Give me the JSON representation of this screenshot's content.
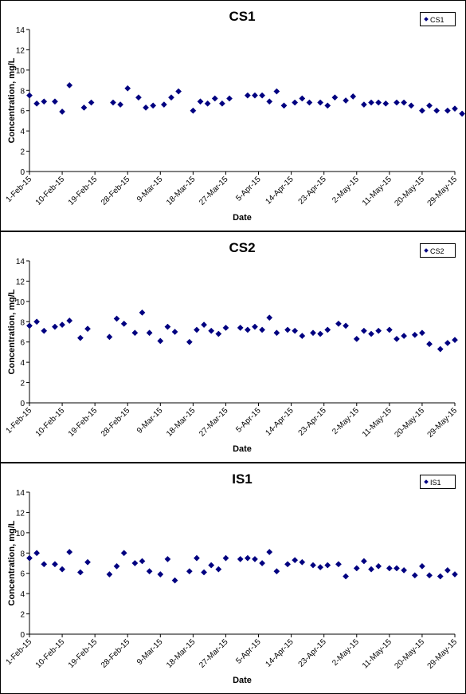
{
  "chart_data": [
    {
      "type": "scatter",
      "title": "CS1",
      "xlabel": "Date",
      "ylabel": "Concentration, mg/L",
      "ylim": [
        0,
        14
      ],
      "yticks": [
        0,
        2,
        4,
        6,
        8,
        10,
        12,
        14
      ],
      "xlim": [
        "2015-02-01",
        "2015-05-29"
      ],
      "xtick_labels": [
        "1-Feb-15",
        "10-Feb-15",
        "19-Feb-15",
        "28-Feb-15",
        "9-Mar-15",
        "18-Mar-15",
        "27-Mar-15",
        "5-Apr-15",
        "14-Apr-15",
        "23-Apr-15",
        "2-May-15",
        "11-May-15",
        "20-May-15",
        "29-May-15"
      ],
      "xtick_dates": [
        "2015-02-01",
        "2015-02-10",
        "2015-02-19",
        "2015-02-28",
        "2015-03-09",
        "2015-03-18",
        "2015-03-27",
        "2015-04-05",
        "2015-04-14",
        "2015-04-23",
        "2015-05-02",
        "2015-05-11",
        "2015-05-20",
        "2015-05-29"
      ],
      "grid": false,
      "legend": "top-right",
      "color": "#000080",
      "series": [
        {
          "name": "CS1",
          "points": [
            [
              "2015-02-01",
              7.5
            ],
            [
              "2015-02-03",
              6.7
            ],
            [
              "2015-02-05",
              6.9
            ],
            [
              "2015-02-08",
              6.9
            ],
            [
              "2015-02-10",
              5.9
            ],
            [
              "2015-02-12",
              8.5
            ],
            [
              "2015-02-16",
              6.3
            ],
            [
              "2015-02-18",
              6.8
            ],
            [
              "2015-02-24",
              6.8
            ],
            [
              "2015-02-26",
              6.6
            ],
            [
              "2015-02-28",
              8.2
            ],
            [
              "2015-03-03",
              7.3
            ],
            [
              "2015-03-05",
              6.3
            ],
            [
              "2015-03-07",
              6.5
            ],
            [
              "2015-03-10",
              6.6
            ],
            [
              "2015-03-12",
              7.3
            ],
            [
              "2015-03-14",
              7.9
            ],
            [
              "2015-03-18",
              6.0
            ],
            [
              "2015-03-20",
              6.9
            ],
            [
              "2015-03-22",
              6.7
            ],
            [
              "2015-03-24",
              7.2
            ],
            [
              "2015-03-26",
              6.7
            ],
            [
              "2015-03-28",
              7.2
            ],
            [
              "2015-04-02",
              7.5
            ],
            [
              "2015-04-04",
              7.5
            ],
            [
              "2015-04-06",
              7.5
            ],
            [
              "2015-04-08",
              6.9
            ],
            [
              "2015-04-10",
              7.9
            ],
            [
              "2015-04-12",
              6.5
            ],
            [
              "2015-04-15",
              6.8
            ],
            [
              "2015-04-17",
              7.2
            ],
            [
              "2015-04-19",
              6.8
            ],
            [
              "2015-04-22",
              6.8
            ],
            [
              "2015-04-24",
              6.5
            ],
            [
              "2015-04-26",
              7.3
            ],
            [
              "2015-04-29",
              7.0
            ],
            [
              "2015-05-01",
              7.4
            ],
            [
              "2015-05-04",
              6.6
            ],
            [
              "2015-05-06",
              6.8
            ],
            [
              "2015-05-08",
              6.8
            ],
            [
              "2015-05-10",
              6.7
            ],
            [
              "2015-05-13",
              6.8
            ],
            [
              "2015-05-15",
              6.8
            ],
            [
              "2015-05-17",
              6.5
            ],
            [
              "2015-05-20",
              6.0
            ],
            [
              "2015-05-22",
              6.5
            ],
            [
              "2015-05-24",
              6.0
            ],
            [
              "2015-05-27",
              6.0
            ],
            [
              "2015-05-29",
              6.2
            ],
            [
              "2015-05-31",
              5.7
            ]
          ]
        }
      ]
    },
    {
      "type": "scatter",
      "title": "CS2",
      "xlabel": "Date",
      "ylabel": "Concentration, mg/L",
      "ylim": [
        0,
        14
      ],
      "yticks": [
        0,
        2,
        4,
        6,
        8,
        10,
        12,
        14
      ],
      "xlim": [
        "2015-02-01",
        "2015-05-29"
      ],
      "xtick_labels": [
        "1-Feb-15",
        "10-Feb-15",
        "19-Feb-15",
        "28-Feb-15",
        "9-Mar-15",
        "18-Mar-15",
        "27-Mar-15",
        "5-Apr-15",
        "14-Apr-15",
        "23-Apr-15",
        "2-May-15",
        "11-May-15",
        "20-May-15",
        "29-May-15"
      ],
      "xtick_dates": [
        "2015-02-01",
        "2015-02-10",
        "2015-02-19",
        "2015-02-28",
        "2015-03-09",
        "2015-03-18",
        "2015-03-27",
        "2015-04-05",
        "2015-04-14",
        "2015-04-23",
        "2015-05-02",
        "2015-05-11",
        "2015-05-20",
        "2015-05-29"
      ],
      "grid": false,
      "legend": "top-right",
      "color": "#000080",
      "series": [
        {
          "name": "CS2",
          "points": [
            [
              "2015-02-01",
              7.6
            ],
            [
              "2015-02-03",
              8.0
            ],
            [
              "2015-02-05",
              7.1
            ],
            [
              "2015-02-08",
              7.5
            ],
            [
              "2015-02-10",
              7.7
            ],
            [
              "2015-02-12",
              8.1
            ],
            [
              "2015-02-15",
              6.4
            ],
            [
              "2015-02-17",
              7.3
            ],
            [
              "2015-02-23",
              6.5
            ],
            [
              "2015-02-25",
              8.3
            ],
            [
              "2015-02-27",
              7.8
            ],
            [
              "2015-03-02",
              6.9
            ],
            [
              "2015-03-04",
              8.9
            ],
            [
              "2015-03-06",
              6.9
            ],
            [
              "2015-03-09",
              6.1
            ],
            [
              "2015-03-11",
              7.5
            ],
            [
              "2015-03-13",
              7.0
            ],
            [
              "2015-03-17",
              6.0
            ],
            [
              "2015-03-19",
              7.2
            ],
            [
              "2015-03-21",
              7.7
            ],
            [
              "2015-03-23",
              7.1
            ],
            [
              "2015-03-25",
              6.8
            ],
            [
              "2015-03-27",
              7.4
            ],
            [
              "2015-03-31",
              7.4
            ],
            [
              "2015-04-02",
              7.2
            ],
            [
              "2015-04-04",
              7.5
            ],
            [
              "2015-04-06",
              7.2
            ],
            [
              "2015-04-08",
              8.4
            ],
            [
              "2015-04-10",
              6.9
            ],
            [
              "2015-04-13",
              7.2
            ],
            [
              "2015-04-15",
              7.1
            ],
            [
              "2015-04-17",
              6.6
            ],
            [
              "2015-04-20",
              6.9
            ],
            [
              "2015-04-22",
              6.8
            ],
            [
              "2015-04-24",
              7.2
            ],
            [
              "2015-04-27",
              7.8
            ],
            [
              "2015-04-29",
              7.6
            ],
            [
              "2015-05-02",
              6.3
            ],
            [
              "2015-05-04",
              7.1
            ],
            [
              "2015-05-06",
              6.8
            ],
            [
              "2015-05-08",
              7.1
            ],
            [
              "2015-05-11",
              7.2
            ],
            [
              "2015-05-13",
              6.3
            ],
            [
              "2015-05-15",
              6.6
            ],
            [
              "2015-05-18",
              6.7
            ],
            [
              "2015-05-20",
              6.9
            ],
            [
              "2015-05-22",
              5.8
            ],
            [
              "2015-05-25",
              5.3
            ],
            [
              "2015-05-27",
              5.9
            ],
            [
              "2015-05-29",
              6.2
            ]
          ]
        }
      ]
    },
    {
      "type": "scatter",
      "title": "IS1",
      "xlabel": "Date",
      "ylabel": "Concentration, mg/L",
      "ylim": [
        0,
        14
      ],
      "yticks": [
        0,
        2,
        4,
        6,
        8,
        10,
        12,
        14
      ],
      "xlim": [
        "2015-02-01",
        "2015-05-29"
      ],
      "xtick_labels": [
        "1-Feb-15",
        "10-Feb-15",
        "19-Feb-15",
        "28-Feb-15",
        "9-Mar-15",
        "18-Mar-15",
        "27-Mar-15",
        "5-Apr-15",
        "14-Apr-15",
        "23-Apr-15",
        "2-May-15",
        "11-May-15",
        "20-May-15",
        "29-May-15"
      ],
      "xtick_dates": [
        "2015-02-01",
        "2015-02-10",
        "2015-02-19",
        "2015-02-28",
        "2015-03-09",
        "2015-03-18",
        "2015-03-27",
        "2015-04-05",
        "2015-04-14",
        "2015-04-23",
        "2015-05-02",
        "2015-05-11",
        "2015-05-20",
        "2015-05-29"
      ],
      "grid": false,
      "legend": "top-right",
      "color": "#000080",
      "series": [
        {
          "name": "IS1",
          "points": [
            [
              "2015-02-01",
              7.5
            ],
            [
              "2015-02-03",
              8.0
            ],
            [
              "2015-02-05",
              6.9
            ],
            [
              "2015-02-08",
              6.9
            ],
            [
              "2015-02-10",
              6.4
            ],
            [
              "2015-02-12",
              8.1
            ],
            [
              "2015-02-15",
              6.1
            ],
            [
              "2015-02-17",
              7.1
            ],
            [
              "2015-02-23",
              5.9
            ],
            [
              "2015-02-25",
              6.7
            ],
            [
              "2015-02-27",
              8.0
            ],
            [
              "2015-03-02",
              7.0
            ],
            [
              "2015-03-04",
              7.2
            ],
            [
              "2015-03-06",
              6.2
            ],
            [
              "2015-03-09",
              5.9
            ],
            [
              "2015-03-11",
              7.4
            ],
            [
              "2015-03-13",
              5.3
            ],
            [
              "2015-03-17",
              6.2
            ],
            [
              "2015-03-19",
              7.5
            ],
            [
              "2015-03-21",
              6.1
            ],
            [
              "2015-03-23",
              6.8
            ],
            [
              "2015-03-25",
              6.4
            ],
            [
              "2015-03-27",
              7.5
            ],
            [
              "2015-03-31",
              7.4
            ],
            [
              "2015-04-02",
              7.5
            ],
            [
              "2015-04-04",
              7.4
            ],
            [
              "2015-04-06",
              7.0
            ],
            [
              "2015-04-08",
              8.1
            ],
            [
              "2015-04-10",
              6.2
            ],
            [
              "2015-04-13",
              6.9
            ],
            [
              "2015-04-15",
              7.3
            ],
            [
              "2015-04-17",
              7.1
            ],
            [
              "2015-04-20",
              6.8
            ],
            [
              "2015-04-22",
              6.6
            ],
            [
              "2015-04-24",
              6.8
            ],
            [
              "2015-04-27",
              6.9
            ],
            [
              "2015-04-29",
              5.7
            ],
            [
              "2015-05-02",
              6.5
            ],
            [
              "2015-05-04",
              7.2
            ],
            [
              "2015-05-06",
              6.4
            ],
            [
              "2015-05-08",
              6.7
            ],
            [
              "2015-05-11",
              6.5
            ],
            [
              "2015-05-13",
              6.5
            ],
            [
              "2015-05-15",
              6.3
            ],
            [
              "2015-05-18",
              5.8
            ],
            [
              "2015-05-20",
              6.7
            ],
            [
              "2015-05-22",
              5.8
            ],
            [
              "2015-05-25",
              5.7
            ],
            [
              "2015-05-27",
              6.3
            ],
            [
              "2015-05-29",
              5.9
            ]
          ]
        }
      ]
    }
  ]
}
